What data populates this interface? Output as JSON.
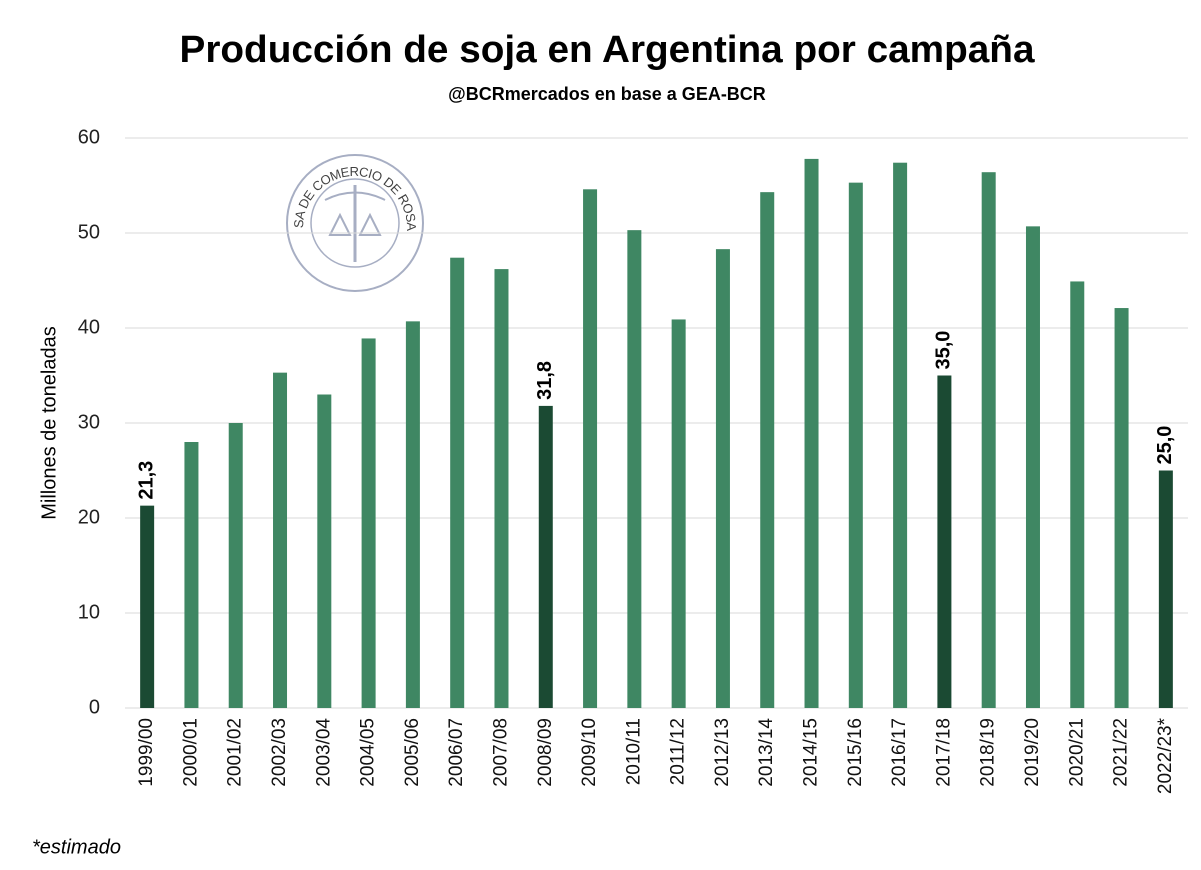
{
  "chart_data": {
    "type": "bar",
    "title": "Producción de soja en Argentina por campaña",
    "subtitle": "@BCRmercados en base a GEA-BCR",
    "y_label": "Millones de toneladas",
    "footnote": "*estimado",
    "logo_text": "BOLSA DE COMERCIO DE ROSARIO",
    "categories": [
      "1999/00",
      "2000/01",
      "2001/02",
      "2002/03",
      "2003/04",
      "2004/05",
      "2005/06",
      "2006/07",
      "2007/08",
      "2008/09",
      "2009/10",
      "2010/11",
      "2011/12",
      "2012/13",
      "2013/14",
      "2014/15",
      "2015/16",
      "2016/17",
      "2017/18",
      "2018/19",
      "2019/20",
      "2020/21",
      "2021/22",
      "2022/23*"
    ],
    "values": [
      21.3,
      28.0,
      30.0,
      35.3,
      33.0,
      38.9,
      40.7,
      47.4,
      46.2,
      31.8,
      54.6,
      50.3,
      40.9,
      48.3,
      54.3,
      57.8,
      55.3,
      57.4,
      35.0,
      56.4,
      50.7,
      44.9,
      42.1,
      25.0
    ],
    "value_labels": [
      "21,3",
      null,
      null,
      null,
      null,
      null,
      null,
      null,
      null,
      "31,8",
      null,
      null,
      null,
      null,
      null,
      null,
      null,
      null,
      "35,0",
      null,
      null,
      null,
      null,
      "25,0"
    ],
    "colors": [
      "#1b4a33",
      "#3f8763",
      "#3f8763",
      "#3f8763",
      "#3f8763",
      "#3f8763",
      "#3f8763",
      "#3f8763",
      "#3f8763",
      "#1b4a33",
      "#3f8763",
      "#3f8763",
      "#3f8763",
      "#3f8763",
      "#3f8763",
      "#3f8763",
      "#3f8763",
      "#3f8763",
      "#1b4a33",
      "#3f8763",
      "#3f8763",
      "#3f8763",
      "#3f8763",
      "#1b4a33"
    ],
    "ylim": [
      0,
      60
    ],
    "yticks": [
      0,
      10,
      20,
      30,
      40,
      50,
      60
    ],
    "grid": true
  }
}
